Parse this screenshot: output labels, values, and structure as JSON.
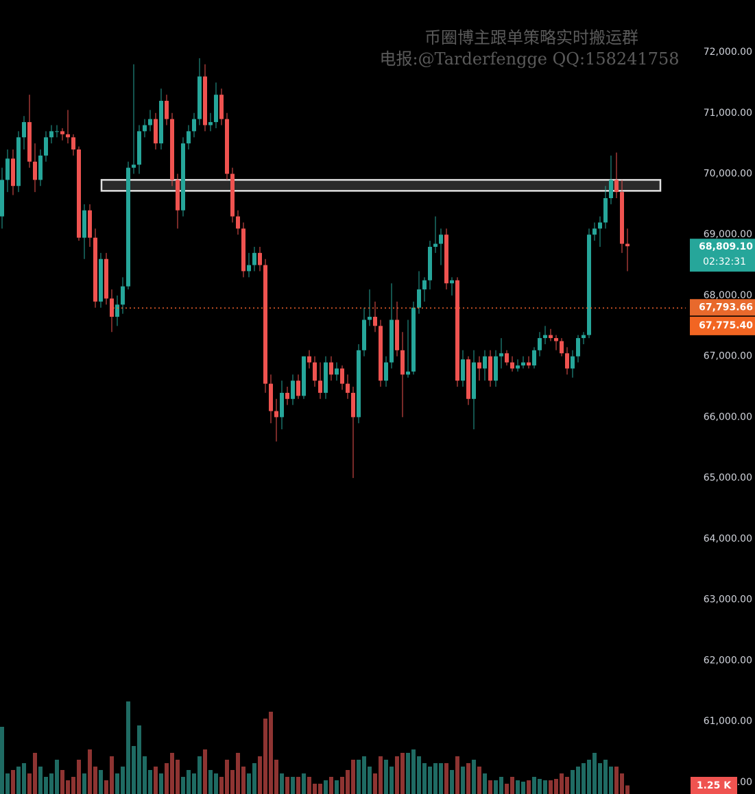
{
  "chart_data": {
    "type": "candlestick",
    "watermark": [
      "币圈博主跟单策略实时搬运群",
      "电报:@Tarderfengge QQ:158241758"
    ],
    "up_color": "#26a69a",
    "down_color": "#ef5350",
    "volume_up_color": "#1f6b63",
    "volume_down_color": "#8e3432",
    "ylim": [
      59806,
      72857
    ],
    "yticks": [
      {
        "value": 60000,
        "label": "60,000.00"
      },
      {
        "value": 61000,
        "label": "61,000.00"
      },
      {
        "value": 62000,
        "label": "62,000.00"
      },
      {
        "value": 63000,
        "label": "63,000.00"
      },
      {
        "value": 64000,
        "label": "64,000.00"
      },
      {
        "value": 65000,
        "label": "65,000.00"
      },
      {
        "value": 66000,
        "label": "66,000.00"
      },
      {
        "value": 67000,
        "label": "67,000.00"
      },
      {
        "value": 68000,
        "label": "68,000.00"
      },
      {
        "value": 69000,
        "label": "69,000.00"
      },
      {
        "value": 70000,
        "label": "70,000.00"
      },
      {
        "value": 71000,
        "label": "71,000.00"
      },
      {
        "value": 72000,
        "label": "72,000.00"
      }
    ],
    "grid": false,
    "zone": [
      69720,
      69900
    ],
    "last_price": {
      "value": 68809.1,
      "label": "68,809.10"
    },
    "countdown": "02:32:31",
    "line_price": {
      "value": 67793.66,
      "label": "67,793.66"
    },
    "other_price": {
      "value": 67775.4,
      "label": "67,775.40"
    },
    "volume_ylim": [
      0,
      14000
    ],
    "last_volume": {
      "value": 1250,
      "label": "1.25 K"
    },
    "candles": [
      [
        69300,
        70100,
        69100,
        69900
      ],
      [
        69900,
        70400,
        69700,
        70250
      ],
      [
        70250,
        70400,
        69650,
        69800
      ],
      [
        69800,
        70700,
        69700,
        70600
      ],
      [
        70600,
        70950,
        70400,
        70850
      ],
      [
        70850,
        71300,
        70100,
        70200
      ],
      [
        70200,
        70500,
        69700,
        69900
      ],
      [
        69900,
        70400,
        69800,
        70300
      ],
      [
        70300,
        70700,
        70200,
        70600
      ],
      [
        70600,
        70800,
        70500,
        70700
      ],
      [
        70700,
        70800,
        70600,
        70700
      ],
      [
        70700,
        70750,
        70550,
        70650
      ],
      [
        70650,
        71050,
        70500,
        70600
      ],
      [
        70600,
        70650,
        70300,
        70400
      ],
      [
        70400,
        70450,
        68900,
        68950
      ],
      [
        68950,
        69500,
        68600,
        69400
      ],
      [
        69400,
        69500,
        68800,
        68950
      ],
      [
        68950,
        69100,
        67800,
        67900
      ],
      [
        67900,
        68700,
        67800,
        68600
      ],
      [
        68600,
        68700,
        67850,
        67950
      ],
      [
        67950,
        68100,
        67400,
        67650
      ],
      [
        67650,
        68000,
        67500,
        67850
      ],
      [
        67850,
        68300,
        67700,
        68150
      ],
      [
        68150,
        70200,
        68100,
        70100
      ],
      [
        70100,
        71800,
        70000,
        70150
      ],
      [
        70150,
        70800,
        70000,
        70700
      ],
      [
        70700,
        70900,
        70600,
        70800
      ],
      [
        70800,
        71050,
        70700,
        70900
      ],
      [
        70900,
        71000,
        70400,
        70500
      ],
      [
        70500,
        71400,
        70400,
        71200
      ],
      [
        71200,
        71300,
        70800,
        70900
      ],
      [
        70900,
        71000,
        69800,
        69900
      ],
      [
        69900,
        70000,
        69100,
        69400
      ],
      [
        69400,
        70600,
        69300,
        70500
      ],
      [
        70500,
        70800,
        70400,
        70700
      ],
      [
        70700,
        71000,
        70600,
        70900
      ],
      [
        70900,
        71900,
        70800,
        71600
      ],
      [
        71600,
        71800,
        70700,
        70800
      ],
      [
        70800,
        71000,
        70700,
        70850
      ],
      [
        70850,
        71500,
        70750,
        71300
      ],
      [
        71300,
        71400,
        70800,
        70900
      ],
      [
        70900,
        71000,
        69900,
        70000
      ],
      [
        70000,
        70100,
        69200,
        69300
      ],
      [
        69300,
        69400,
        69000,
        69100
      ],
      [
        69100,
        69200,
        68300,
        68400
      ],
      [
        68400,
        68700,
        68300,
        68500
      ],
      [
        68500,
        68800,
        68400,
        68700
      ],
      [
        68700,
        68800,
        68400,
        68500
      ],
      [
        68500,
        68600,
        66400,
        66550
      ],
      [
        66550,
        66700,
        65900,
        66100
      ],
      [
        66100,
        66300,
        65600,
        66000
      ],
      [
        66000,
        66600,
        65800,
        66400
      ],
      [
        66400,
        66500,
        66200,
        66300
      ],
      [
        66300,
        66700,
        66200,
        66600
      ],
      [
        66600,
        66700,
        66300,
        66350
      ],
      [
        66350,
        67000,
        66300,
        67000
      ],
      [
        67000,
        67100,
        66800,
        66900
      ],
      [
        66900,
        67000,
        66500,
        66600
      ],
      [
        66600,
        66900,
        66300,
        66400
      ],
      [
        66400,
        67000,
        66300,
        66900
      ],
      [
        66900,
        67000,
        66600,
        66700
      ],
      [
        66700,
        66900,
        66600,
        66800
      ],
      [
        66800,
        66850,
        66450,
        66550
      ],
      [
        66550,
        66700,
        66300,
        66400
      ],
      [
        66400,
        66500,
        65000,
        66000
      ],
      [
        66000,
        67200,
        65900,
        67100
      ],
      [
        67100,
        67800,
        67000,
        67600
      ],
      [
        67600,
        68100,
        67500,
        67650
      ],
      [
        67650,
        67900,
        67400,
        67500
      ],
      [
        67500,
        67600,
        66500,
        66600
      ],
      [
        66600,
        67000,
        66500,
        66900
      ],
      [
        66900,
        68200,
        66800,
        67600
      ],
      [
        67600,
        67900,
        67000,
        67100
      ],
      [
        67100,
        67400,
        66000,
        66700
      ],
      [
        66700,
        67600,
        66650,
        66750
      ],
      [
        66750,
        67900,
        66700,
        67800
      ],
      [
        67800,
        68400,
        67700,
        68100
      ],
      [
        68100,
        68300,
        67900,
        68250
      ],
      [
        68250,
        68900,
        68100,
        68800
      ],
      [
        68800,
        69300,
        68700,
        68850
      ],
      [
        68850,
        69100,
        68500,
        69000
      ],
      [
        69000,
        69100,
        68100,
        68200
      ],
      [
        68200,
        68300,
        68000,
        68250
      ],
      [
        68250,
        68300,
        66500,
        66600
      ],
      [
        66600,
        67100,
        66500,
        66950
      ],
      [
        66950,
        67000,
        66200,
        66300
      ],
      [
        66300,
        67100,
        65800,
        66900
      ],
      [
        66900,
        67000,
        66600,
        66800
      ],
      [
        66800,
        67100,
        66600,
        67000
      ],
      [
        67000,
        67100,
        66500,
        66600
      ],
      [
        66600,
        67100,
        66500,
        67000
      ],
      [
        67000,
        67300,
        66800,
        67050
      ],
      [
        67050,
        67100,
        66850,
        66900
      ],
      [
        66900,
        67000,
        66750,
        66800
      ],
      [
        66800,
        66950,
        66750,
        66850
      ],
      [
        66850,
        67000,
        66800,
        66900
      ],
      [
        66900,
        67000,
        66800,
        66850
      ],
      [
        66850,
        67150,
        66800,
        67100
      ],
      [
        67100,
        67400,
        67000,
        67300
      ],
      [
        67300,
        67500,
        67200,
        67350
      ],
      [
        67350,
        67450,
        67250,
        67300
      ],
      [
        67300,
        67350,
        67100,
        67250
      ],
      [
        67250,
        67300,
        67000,
        67050
      ],
      [
        67050,
        67150,
        66700,
        66800
      ],
      [
        66800,
        67100,
        66650,
        67000
      ],
      [
        67000,
        67350,
        66900,
        67300
      ],
      [
        67300,
        67400,
        67200,
        67350
      ],
      [
        67350,
        69100,
        67300,
        69000
      ],
      [
        69000,
        69200,
        68900,
        69100
      ],
      [
        69100,
        69300,
        68800,
        69200
      ],
      [
        69200,
        69800,
        69100,
        69600
      ],
      [
        69600,
        70300,
        69500,
        69900
      ],
      [
        69900,
        70350,
        69600,
        69700
      ],
      [
        69700,
        69900,
        68700,
        68850
      ],
      [
        68850,
        69100,
        68400,
        68809.1
      ]
    ],
    "volume": [
      9800,
      3000,
      3500,
      4000,
      4500,
      3000,
      6000,
      4000,
      2500,
      3000,
      5000,
      3500,
      2000,
      2500,
      5000,
      3000,
      6500,
      4000,
      3500,
      2000,
      5500,
      3000,
      4000,
      13500,
      7000,
      10000,
      5500,
      3500,
      4000,
      3000,
      4500,
      6000,
      5000,
      2500,
      3500,
      3000,
      5500,
      6500,
      3500,
      3000,
      2500,
      5000,
      3500,
      6000,
      4000,
      3000,
      4500,
      5500,
      11000,
      12000,
      5000,
      3000,
      2500,
      2500,
      2500,
      3000,
      2500,
      1500,
      1500,
      2000,
      2500,
      2000,
      2500,
      3500,
      5000,
      5000,
      5500,
      4000,
      3000,
      5500,
      5000,
      4000,
      5500,
      6000,
      6000,
      6500,
      5500,
      4500,
      4000,
      4500,
      4500,
      4500,
      3500,
      5500,
      4000,
      4500,
      5000,
      4000,
      3000,
      2000,
      2000,
      2500,
      1500,
      2500,
      2000,
      1800,
      2000,
      2500,
      2200,
      2000,
      2000,
      2200,
      3000,
      2500,
      3500,
      4000,
      4500,
      5000,
      6000,
      4500,
      5000,
      4000,
      4000,
      3000,
      1250
    ]
  }
}
